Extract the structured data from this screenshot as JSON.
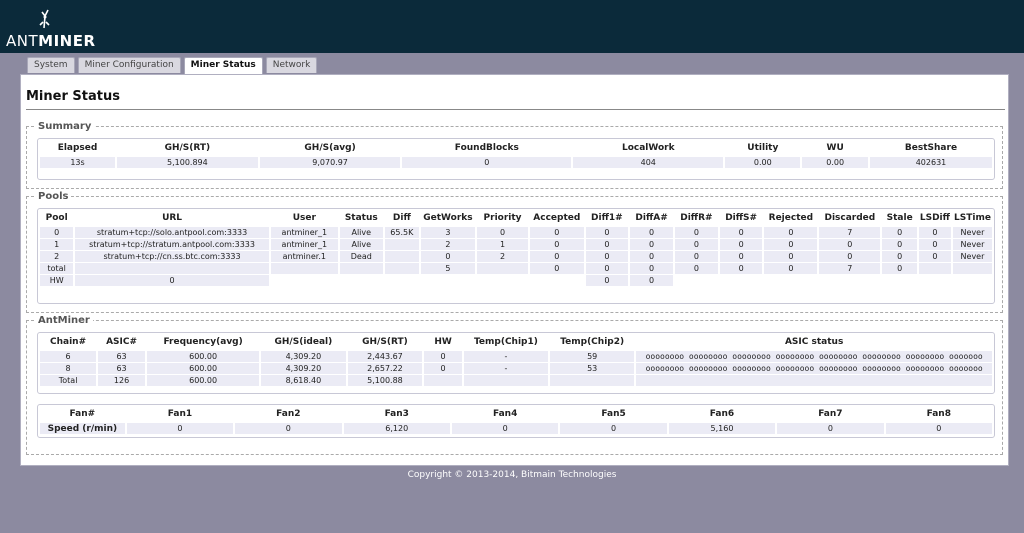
{
  "header": {
    "logo_text_light": "ANT",
    "logo_text_bold": "MINER"
  },
  "tabs": [
    {
      "label": "System",
      "active": false
    },
    {
      "label": "Miner Configuration",
      "active": false
    },
    {
      "label": "Miner Status",
      "active": true
    },
    {
      "label": "Network",
      "active": false
    }
  ],
  "page": {
    "title": "Miner Status"
  },
  "summary": {
    "legend": "Summary",
    "headers": [
      "Elapsed",
      "GH/S(RT)",
      "GH/S(avg)",
      "FoundBlocks",
      "LocalWork",
      "Utility",
      "WU",
      "BestShare"
    ],
    "row": [
      "13s",
      "5,100.894",
      "9,070.97",
      "0",
      "404",
      "0.00",
      "0.00",
      "402631"
    ]
  },
  "pools": {
    "legend": "Pools",
    "headers": [
      "Pool",
      "URL",
      "User",
      "Status",
      "Diff",
      "GetWorks",
      "Priority",
      "Accepted",
      "Diff1#",
      "DiffA#",
      "DiffR#",
      "DiffS#",
      "Rejected",
      "Discarded",
      "Stale",
      "LSDiff",
      "LSTime"
    ],
    "rows": [
      [
        "0",
        "stratum+tcp://solo.antpool.com:3333",
        "antminer_1",
        "Alive",
        "65.5K",
        "3",
        "0",
        "0",
        "0",
        "0",
        "0",
        "0",
        "0",
        "7",
        "0",
        "0",
        "Never"
      ],
      [
        "1",
        "stratum+tcp://stratum.antpool.com:3333",
        "antminer_1",
        "Alive",
        "",
        "2",
        "1",
        "0",
        "0",
        "0",
        "0",
        "0",
        "0",
        "0",
        "0",
        "0",
        "Never"
      ],
      [
        "2",
        "stratum+tcp://cn.ss.btc.com:3333",
        "antminer.1",
        "Dead",
        "",
        "0",
        "2",
        "0",
        "0",
        "0",
        "0",
        "0",
        "0",
        "0",
        "0",
        "0",
        "Never"
      ],
      [
        "total",
        "",
        "",
        "",
        "",
        "5",
        "",
        "0",
        "0",
        "0",
        "0",
        "0",
        "0",
        "7",
        "0",
        "",
        ""
      ]
    ],
    "hw_row": {
      "label": "HW",
      "value": "0",
      "diff1": "0",
      "diffa": "0"
    }
  },
  "antminer": {
    "legend": "AntMiner",
    "headers": [
      "Chain#",
      "ASIC#",
      "Frequency(avg)",
      "GH/S(ideal)",
      "GH/S(RT)",
      "HW",
      "Temp(Chip1)",
      "Temp(Chip2)",
      "ASIC status"
    ],
    "rows": [
      [
        "6",
        "63",
        "600.00",
        "4,309.20",
        "2,443.67",
        "0",
        "-",
        "59",
        "oooooooo oooooooo oooooooo oooooooo oooooooo oooooooo oooooooo ooooooo"
      ],
      [
        "8",
        "63",
        "600.00",
        "4,309.20",
        "2,657.22",
        "0",
        "-",
        "53",
        "oooooooo oooooooo oooooooo oooooooo oooooooo oooooooo oooooooo ooooooo"
      ],
      [
        "Total",
        "126",
        "600.00",
        "8,618.40",
        "5,100.88",
        "",
        "",
        "",
        ""
      ]
    ],
    "fan_headers": [
      "Fan#",
      "Fan1",
      "Fan2",
      "Fan3",
      "Fan4",
      "Fan5",
      "Fan6",
      "Fan7",
      "Fan8"
    ],
    "fan_row": [
      "Speed (r/min)",
      "0",
      "0",
      "6,120",
      "0",
      "0",
      "5,160",
      "0",
      "0"
    ]
  },
  "footer": {
    "copyright": "Copyright © 2013-2014, Bitmain Technologies"
  },
  "colors": {
    "header_bg": "#0b2a3a",
    "page_bg": "#8c8aa0",
    "cell_bg": "#ebebf5"
  }
}
